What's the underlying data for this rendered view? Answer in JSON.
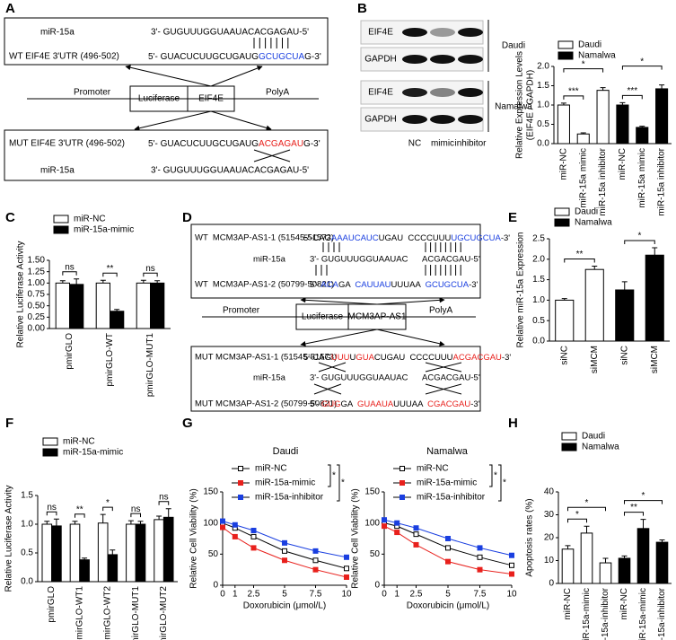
{
  "panel_labels": [
    "A",
    "B",
    "C",
    "D",
    "E",
    "F",
    "G",
    "H"
  ],
  "diagram_a": {
    "wt_box": {
      "mirna_name": "miR-15a",
      "mirna_seq": "3'- GUGUUUGGUAAUACACGAGAU-5'",
      "target_name": "WT EIF4E 3'UTR (496-502)",
      "target_seq": [
        "5'- GUACUCUUGCUGAUG",
        "GCUGCUA",
        "G-3'"
      ]
    },
    "construct": {
      "promoter": "Promoter",
      "luciferase": "Luciferase",
      "gene": "EIF4E",
      "polya": "PolyA"
    },
    "mut_box": {
      "target_name": "MUT EIF4E 3'UTR (496-502)",
      "target_seq": [
        "5'- GUACUCUUGCUGAUG",
        "ACGAGAU",
        "G-3'"
      ],
      "mirna_name": "miR-15a",
      "mirna_seq": "3'- GUGUUUGGUAAUACACGAGAU-5'"
    }
  },
  "blot_b": {
    "rows": [
      "EIF4E",
      "GAPDH",
      "EIF4E",
      "GAPDH"
    ],
    "groups": [
      "Daudi",
      "Namalwa"
    ],
    "lanes": [
      "NC",
      "mimic",
      "inhibitor"
    ]
  },
  "diagram_d": {
    "wt_box": {
      "target1_name": "WT  MCM3AP-AS1-1 (51545-51573)",
      "target1_seq": [
        "5'-CAG",
        "AAAUCAUC",
        "UGAU  CCCCUUU",
        "UGCUGCUA",
        "-3'"
      ],
      "mirna_name": "miR-15a",
      "mirna_seq": [
        "3'- GUGUUUGGUAAUAC",
        "ACGACGAU-5'"
      ],
      "target2_name": "WT  MCM3AP-AS1-2 (50799-50821)",
      "target2_seq": [
        "5'- ",
        "ACA",
        "GA  ",
        "CAUUAU",
        "UUUAA  ",
        "GCUGCUA",
        "-3'"
      ]
    },
    "construct": {
      "promoter": "Promoter",
      "luciferase": "Luciferase",
      "gene": "MCM3AP-AS1",
      "polya": "PolyA"
    },
    "mut_box": {
      "target1_name": "MUT MCM3AP-AS1-1 (51545-51573)",
      "target1_seq": [
        "5'-CAG",
        "UUU",
        "U",
        "GUA",
        "CUGAU  CCCCUUU",
        "ACGACGAU",
        "-3'"
      ],
      "mirna_name": "miR-15a",
      "mirna_seq": [
        "3'- GUGUUUGGUAAUAC",
        "ACGACGAU-5'"
      ],
      "target2_name": "MUT MCM3AP-AS1-2 (50799-50821)",
      "target2_seq": [
        "5'- ",
        "GUG",
        "GA  ",
        "GUAAUA",
        "UUUAA  ",
        "CGACGAU",
        "-3'"
      ]
    }
  },
  "chart_data": [
    {
      "type": "bar",
      "ylabel": [
        "Relative Expression Levels",
        "(EIF4E / GAPDH)"
      ],
      "categories": [
        "miR-NC",
        "miR-15a mimic",
        "miR-15a inhibitor",
        "miR-NC",
        "miR-15a mimic",
        "miR-15a inhibitor"
      ],
      "series": [
        {
          "name": "Daudi",
          "color": "#ffffff",
          "values": [
            1.0,
            0.25,
            1.38,
            null,
            null,
            null
          ],
          "errors": [
            0.05,
            0.03,
            0.07,
            null,
            null,
            null
          ]
        },
        {
          "name": "Namalwa",
          "color": "#000000",
          "values": [
            null,
            null,
            null,
            1.0,
            0.42,
            1.42
          ],
          "errors": [
            null,
            null,
            null,
            0.06,
            0.03,
            0.1
          ]
        }
      ],
      "ylim": [
        0,
        2
      ],
      "yticks": [
        {
          "value": 0,
          "label": "0.0"
        },
        0.5,
        {
          "value": 1,
          "label": "1.0"
        },
        1.5,
        {
          "value": 2,
          "label": "2.0"
        }
      ],
      "significance": [
        "***",
        "*",
        "***",
        "*"
      ]
    },
    {
      "type": "bar",
      "ylabel": "Relative Luciferase Activity",
      "categories": [
        "pmirGLO",
        "pmirGLO-WT",
        "pmirGLO-MUT1"
      ],
      "series": [
        {
          "name": "miR-NC",
          "color": "#ffffff",
          "values": [
            1.0,
            1.0,
            1.0
          ],
          "errors": [
            0.05,
            0.06,
            0.06
          ]
        },
        {
          "name": "miR-15a-mimic",
          "color": "#000000",
          "values": [
            0.97,
            0.38,
            1.0
          ],
          "errors": [
            0.12,
            0.04,
            0.05
          ]
        }
      ],
      "ylim": [
        0,
        1.5
      ],
      "yticks": [
        {
          "value": 0,
          "label": "0.00"
        },
        0.25,
        {
          "value": 0.5,
          "label": "0.50"
        },
        0.75,
        {
          "value": 1,
          "label": "1.00"
        },
        1.25,
        {
          "value": 1.5,
          "label": "1.50"
        }
      ],
      "significance": [
        "ns",
        "**",
        "ns"
      ]
    },
    {
      "type": "bar",
      "ylabel": "Relative miR-15a Expression",
      "categories": [
        "siNC",
        "siMCM",
        "siNC",
        "siMCM"
      ],
      "series": [
        {
          "name": "Daudi",
          "color": "#ffffff",
          "values": [
            1.0,
            1.75,
            null,
            null
          ],
          "errors": [
            0.04,
            0.08,
            null,
            null
          ]
        },
        {
          "name": "Namalwa",
          "color": "#000000",
          "values": [
            null,
            null,
            1.25,
            2.1
          ],
          "errors": [
            null,
            null,
            0.2,
            0.18
          ]
        }
      ],
      "ylim": [
        0,
        2.5
      ],
      "yticks": [
        {
          "value": 0,
          "label": "0.0"
        },
        0.5,
        {
          "value": 1,
          "label": "1.0"
        },
        1.5,
        {
          "value": 2,
          "label": "2.0"
        },
        2.5
      ],
      "significance": [
        "**",
        "*"
      ]
    },
    {
      "type": "bar",
      "ylabel": "Relative Luciferase Activity",
      "categories": [
        "pmirGLO",
        "pmirGLO-WT1",
        "pmirGLO-WT2",
        "pmirGLO-MUT1",
        "pmirGLO-MUT2"
      ],
      "series": [
        {
          "name": "miR-NC",
          "color": "#ffffff",
          "values": [
            1.0,
            1.0,
            1.02,
            1.0,
            1.08
          ],
          "errors": [
            0.05,
            0.05,
            0.15,
            0.06,
            0.06
          ]
        },
        {
          "name": "miR-15a-mimic",
          "color": "#000000",
          "values": [
            0.97,
            0.38,
            0.47,
            1.0,
            1.12
          ],
          "errors": [
            0.12,
            0.03,
            0.08,
            0.05,
            0.15
          ]
        }
      ],
      "ylim": [
        0,
        1.5
      ],
      "yticks": [
        {
          "value": 0,
          "label": "0.0"
        },
        0.5,
        {
          "value": 1,
          "label": "1.0"
        },
        1.5
      ],
      "significance": [
        "ns",
        "**",
        "*",
        "ns",
        "ns"
      ]
    },
    {
      "type": "line",
      "title": "Daudi",
      "xlabel": "Doxorubicin (μmol/L)",
      "ylabel": "Relative Cell Viability (%)",
      "x": [
        0,
        1,
        2.5,
        5,
        7.5,
        10
      ],
      "xlim": [
        0,
        10
      ],
      "xticks": [
        0,
        1,
        2.5,
        5,
        7.5,
        10
      ],
      "ylim": [
        0,
        150
      ],
      "yticks": [
        0,
        50,
        100,
        150
      ],
      "series": [
        {
          "name": "miR-NC",
          "color": "#000000",
          "marker_fill": "#ffffff",
          "values": [
            100,
            92,
            78,
            55,
            40,
            27
          ]
        },
        {
          "name": "miR-15a-mimic",
          "color": "#e8201c",
          "marker_fill": "#e8201c",
          "values": [
            93,
            78,
            60,
            40,
            25,
            13
          ]
        },
        {
          "name": "miR-15a-inhibitor",
          "color": "#1a3fe0",
          "marker_fill": "#1a3fe0",
          "values": [
            103,
            97,
            88,
            68,
            55,
            45
          ]
        }
      ],
      "significance": [
        "*",
        "*"
      ]
    },
    {
      "type": "line",
      "title": "Namalwa",
      "xlabel": "Doxorubicin (μmol/L)",
      "ylabel": "Relative Cell Viability (%)",
      "x": [
        0,
        1,
        2.5,
        5,
        7.5,
        10
      ],
      "xlim": [
        0,
        10
      ],
      "xticks": [
        0,
        1,
        2.5,
        5,
        7.5,
        10
      ],
      "ylim": [
        0,
        150
      ],
      "yticks": [
        0,
        50,
        100,
        150
      ],
      "series": [
        {
          "name": "miR-NC",
          "color": "#000000",
          "marker_fill": "#ffffff",
          "values": [
            100,
            95,
            82,
            60,
            45,
            32
          ]
        },
        {
          "name": "miR-15a-mimic",
          "color": "#e8201c",
          "marker_fill": "#e8201c",
          "values": [
            95,
            85,
            65,
            38,
            25,
            18
          ]
        },
        {
          "name": "miR-15a-inhibitor",
          "color": "#1a3fe0",
          "marker_fill": "#1a3fe0",
          "values": [
            105,
            100,
            92,
            75,
            60,
            48
          ]
        }
      ],
      "significance": [
        "*",
        "*"
      ]
    },
    {
      "type": "bar",
      "ylabel": "Apoptosis rates (%)",
      "categories": [
        "miR-NC",
        "miR-15a-mimic",
        "miR-15a-inhibitor",
        "miR-NC",
        "miR-15a-mimic",
        "miR-15a-inhibitor"
      ],
      "series": [
        {
          "name": "Daudi",
          "color": "#ffffff",
          "values": [
            15,
            22,
            9,
            null,
            null,
            null
          ],
          "errors": [
            1.5,
            3,
            2,
            null,
            null,
            null
          ]
        },
        {
          "name": "Namalwa",
          "color": "#000000",
          "values": [
            null,
            null,
            null,
            11,
            24,
            18
          ],
          "errors": [
            null,
            null,
            null,
            1,
            4,
            1
          ]
        }
      ],
      "ylim": [
        0,
        40
      ],
      "yticks": [
        0,
        10,
        20,
        30,
        40
      ],
      "significance": [
        "*",
        "*",
        "**",
        "*"
      ]
    }
  ]
}
